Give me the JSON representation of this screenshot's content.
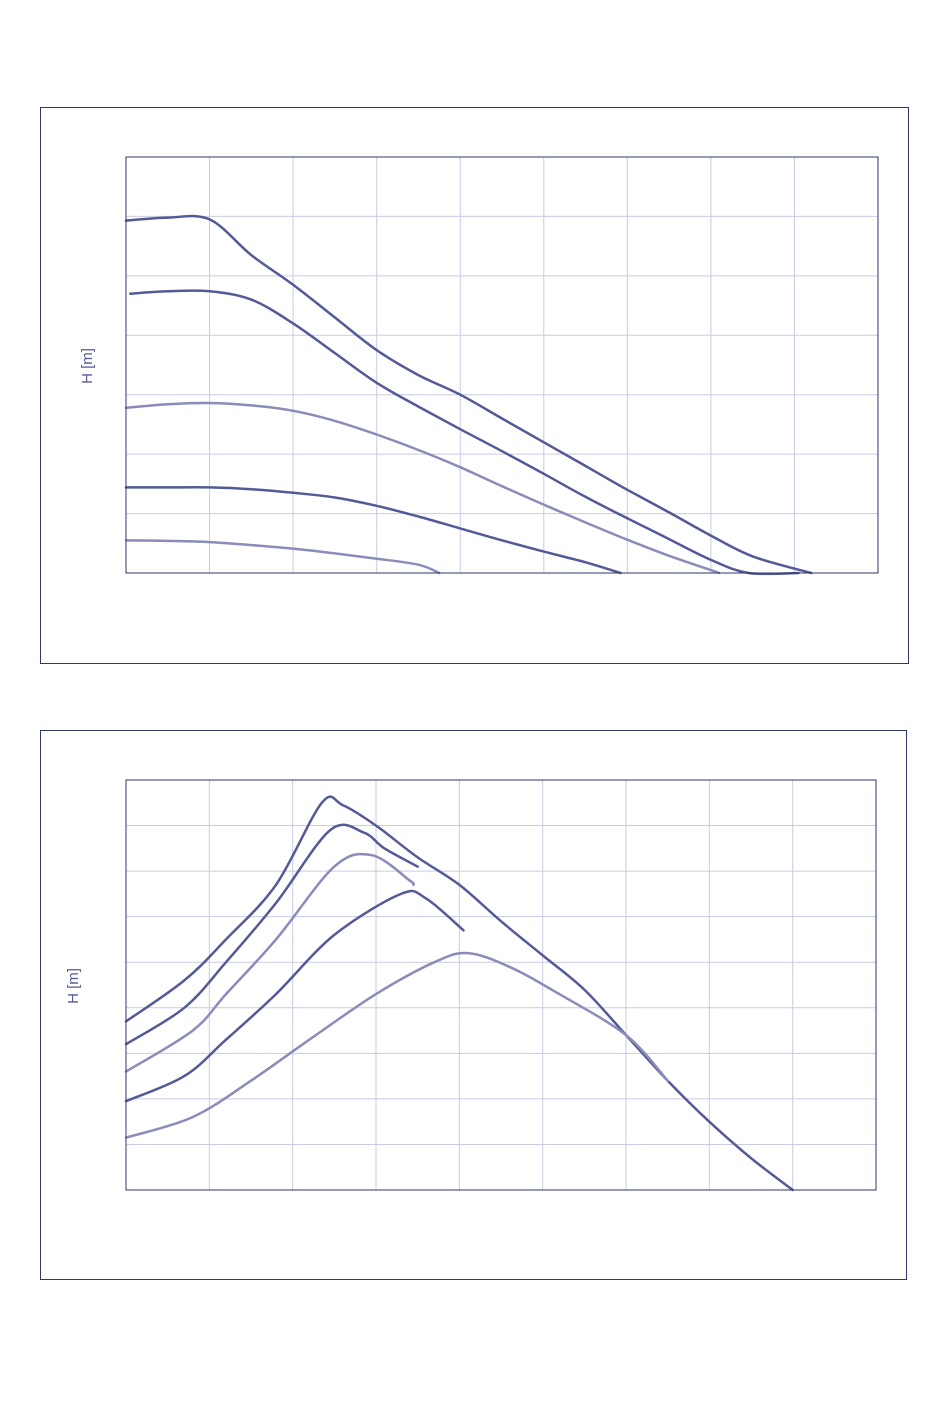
{
  "colors": {
    "grid": "#c9cbe3",
    "frame": "#2e3768",
    "dark": "#545a98",
    "light": "#8a8cba"
  },
  "chart_data": [
    {
      "type": "line",
      "title": "",
      "xlabel": "",
      "ylabel": "H [m]",
      "xlim": [
        0,
        9
      ],
      "ylim": [
        0,
        7
      ],
      "grid": true,
      "series": [
        {
          "color": "dark",
          "points": [
            [
              0,
              5.93
            ],
            [
              0.5,
              5.98
            ],
            [
              1,
              5.95
            ],
            [
              1.5,
              5.35
            ],
            [
              2,
              4.85
            ],
            [
              2.5,
              4.3
            ],
            [
              3,
              3.75
            ],
            [
              3.5,
              3.33
            ],
            [
              4,
              3
            ],
            [
              4.5,
              2.6
            ],
            [
              5,
              2.2
            ],
            [
              5.5,
              1.8
            ],
            [
              6,
              1.4
            ],
            [
              6.5,
              1.02
            ],
            [
              7,
              0.63
            ],
            [
              7.5,
              0.28
            ],
            [
              8.2,
              0
            ]
          ]
        },
        {
          "color": "dark",
          "points": [
            [
              0.05,
              4.7
            ],
            [
              0.5,
              4.74
            ],
            [
              1,
              4.74
            ],
            [
              1.5,
              4.6
            ],
            [
              2,
              4.2
            ],
            [
              2.5,
              3.7
            ],
            [
              3,
              3.2
            ],
            [
              3.5,
              2.8
            ],
            [
              4,
              2.42
            ],
            [
              4.5,
              2.05
            ],
            [
              5,
              1.67
            ],
            [
              5.5,
              1.28
            ],
            [
              6,
              0.92
            ],
            [
              6.5,
              0.57
            ],
            [
              7,
              0.22
            ],
            [
              7.45,
              0
            ],
            [
              8.05,
              0
            ]
          ]
        },
        {
          "color": "light",
          "points": [
            [
              0,
              2.78
            ],
            [
              0.5,
              2.84
            ],
            [
              1,
              2.86
            ],
            [
              1.5,
              2.82
            ],
            [
              2,
              2.73
            ],
            [
              2.5,
              2.56
            ],
            [
              3,
              2.33
            ],
            [
              3.5,
              2.07
            ],
            [
              4,
              1.78
            ],
            [
              4.5,
              1.46
            ],
            [
              5,
              1.15
            ],
            [
              5.5,
              0.85
            ],
            [
              6,
              0.56
            ],
            [
              6.5,
              0.29
            ],
            [
              7.1,
              0
            ]
          ]
        },
        {
          "color": "dark",
          "points": [
            [
              0,
              1.44
            ],
            [
              0.5,
              1.44
            ],
            [
              1,
              1.44
            ],
            [
              1.5,
              1.41
            ],
            [
              2,
              1.35
            ],
            [
              2.5,
              1.27
            ],
            [
              3,
              1.13
            ],
            [
              3.5,
              0.95
            ],
            [
              4,
              0.75
            ],
            [
              4.5,
              0.55
            ],
            [
              5,
              0.36
            ],
            [
              5.5,
              0.18
            ],
            [
              5.92,
              0
            ]
          ]
        },
        {
          "color": "light",
          "points": [
            [
              0,
              0.55
            ],
            [
              0.5,
              0.54
            ],
            [
              1,
              0.52
            ],
            [
              1.5,
              0.47
            ],
            [
              2,
              0.41
            ],
            [
              2.5,
              0.33
            ],
            [
              3,
              0.24
            ],
            [
              3.5,
              0.14
            ],
            [
              3.75,
              0
            ]
          ]
        }
      ]
    },
    {
      "type": "line",
      "title": "",
      "xlabel": "",
      "ylabel": "H [m]",
      "xlim": [
        0,
        9
      ],
      "ylim": [
        0,
        9
      ],
      "grid": true,
      "series": [
        {
          "color": "dark",
          "points": [
            [
              0,
              3.7
            ],
            [
              0.7,
              4.6
            ],
            [
              1.2,
              5.5
            ],
            [
              1.8,
              6.7
            ],
            [
              2.35,
              8.5
            ],
            [
              2.6,
              8.45
            ],
            [
              3,
              8
            ],
            [
              3.5,
              7.3
            ],
            [
              4,
              6.7
            ],
            [
              4.5,
              5.9
            ],
            [
              5,
              5.15
            ],
            [
              5.5,
              4.4
            ],
            [
              6,
              3.4
            ],
            [
              6.5,
              2.4
            ],
            [
              7,
              1.5
            ],
            [
              7.5,
              0.7
            ],
            [
              8,
              0
            ]
          ]
        },
        {
          "color": "dark",
          "points": [
            [
              0,
              3.2
            ],
            [
              0.7,
              4
            ],
            [
              1.2,
              5
            ],
            [
              1.8,
              6.3
            ],
            [
              2.45,
              7.9
            ],
            [
              2.85,
              7.85
            ],
            [
              3.1,
              7.5
            ],
            [
              3.5,
              7.1
            ]
          ]
        },
        {
          "color": "light",
          "points": [
            [
              0,
              2.6
            ],
            [
              0.8,
              3.5
            ],
            [
              1.2,
              4.3
            ],
            [
              1.8,
              5.5
            ],
            [
              2.5,
              7.1
            ],
            [
              2.95,
              7.35
            ],
            [
              3.4,
              6.8
            ],
            [
              3.45,
              6.7
            ]
          ]
        },
        {
          "color": "dark",
          "points": [
            [
              0,
              1.95
            ],
            [
              0.7,
              2.5
            ],
            [
              1.2,
              3.3
            ],
            [
              1.8,
              4.3
            ],
            [
              2.5,
              5.6
            ],
            [
              3.3,
              6.5
            ],
            [
              3.6,
              6.4
            ],
            [
              4.05,
              5.7
            ]
          ]
        },
        {
          "color": "light",
          "points": [
            [
              0,
              1.15
            ],
            [
              0.8,
              1.6
            ],
            [
              1.5,
              2.4
            ],
            [
              2.2,
              3.3
            ],
            [
              3,
              4.3
            ],
            [
              3.7,
              5
            ],
            [
              4.1,
              5.2
            ],
            [
              4.6,
              4.9
            ],
            [
              5.2,
              4.3
            ],
            [
              6,
              3.4
            ],
            [
              6.5,
              2.4
            ]
          ]
        }
      ]
    }
  ]
}
